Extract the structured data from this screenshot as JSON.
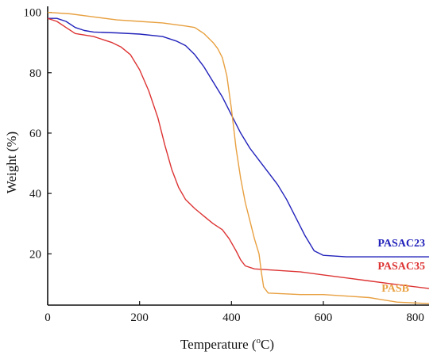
{
  "chart_data": {
    "type": "line",
    "title": "",
    "xlabel": "Temperature (",
    "xlabel_superscript": "o",
    "xlabel_suffix": "C)",
    "ylabel": "Weight (%)",
    "xlim": [
      0,
      830
    ],
    "ylim": [
      3,
      102
    ],
    "xticks": [
      0,
      200,
      400,
      600,
      800
    ],
    "xtick_labels": [
      "0",
      "200",
      "400",
      "600",
      "800"
    ],
    "yticks": [
      20,
      40,
      60,
      80,
      100
    ],
    "ytick_labels": [
      "20",
      "40",
      "60",
      "80",
      "100"
    ],
    "grid": false,
    "legend": "inline labels at right end of curves",
    "series": [
      {
        "name": "PASAC23",
        "color": "#2222bb",
        "points": [
          [
            0,
            98
          ],
          [
            20,
            98
          ],
          [
            40,
            97
          ],
          [
            60,
            95
          ],
          [
            80,
            94
          ],
          [
            100,
            93.5
          ],
          [
            150,
            93.2
          ],
          [
            200,
            92.8
          ],
          [
            250,
            92
          ],
          [
            280,
            90.5
          ],
          [
            300,
            89
          ],
          [
            320,
            86
          ],
          [
            340,
            82
          ],
          [
            360,
            77
          ],
          [
            380,
            72
          ],
          [
            400,
            66
          ],
          [
            420,
            60
          ],
          [
            440,
            55
          ],
          [
            460,
            51
          ],
          [
            480,
            47
          ],
          [
            500,
            43
          ],
          [
            520,
            38
          ],
          [
            540,
            32
          ],
          [
            560,
            26
          ],
          [
            580,
            21
          ],
          [
            600,
            19.5
          ],
          [
            650,
            19
          ],
          [
            700,
            19
          ],
          [
            750,
            19
          ],
          [
            830,
            19
          ]
        ]
      },
      {
        "name": "PASAC35",
        "color": "#dd3333",
        "points": [
          [
            0,
            98
          ],
          [
            20,
            97
          ],
          [
            40,
            95
          ],
          [
            60,
            93
          ],
          [
            80,
            92.5
          ],
          [
            100,
            92
          ],
          [
            120,
            91
          ],
          [
            140,
            90
          ],
          [
            160,
            88.5
          ],
          [
            180,
            86
          ],
          [
            200,
            81
          ],
          [
            220,
            74
          ],
          [
            240,
            65
          ],
          [
            255,
            56
          ],
          [
            270,
            48
          ],
          [
            285,
            42
          ],
          [
            300,
            38
          ],
          [
            320,
            35
          ],
          [
            340,
            32.5
          ],
          [
            360,
            30
          ],
          [
            380,
            28
          ],
          [
            395,
            25
          ],
          [
            410,
            21
          ],
          [
            420,
            18
          ],
          [
            430,
            16
          ],
          [
            450,
            15
          ],
          [
            500,
            14.5
          ],
          [
            550,
            14
          ],
          [
            600,
            13
          ],
          [
            650,
            12
          ],
          [
            700,
            11
          ],
          [
            750,
            10
          ],
          [
            830,
            8.5
          ]
        ]
      },
      {
        "name": "PASB",
        "color": "#e8a040",
        "points": [
          [
            0,
            100
          ],
          [
            50,
            99.5
          ],
          [
            100,
            98.5
          ],
          [
            150,
            97.5
          ],
          [
            200,
            97
          ],
          [
            250,
            96.5
          ],
          [
            300,
            95.5
          ],
          [
            320,
            95
          ],
          [
            340,
            93
          ],
          [
            360,
            90
          ],
          [
            370,
            88
          ],
          [
            380,
            85
          ],
          [
            390,
            79
          ],
          [
            400,
            68
          ],
          [
            410,
            55
          ],
          [
            420,
            45
          ],
          [
            430,
            37
          ],
          [
            440,
            31
          ],
          [
            450,
            25
          ],
          [
            460,
            20
          ],
          [
            465,
            14
          ],
          [
            470,
            9
          ],
          [
            480,
            7
          ],
          [
            550,
            6.5
          ],
          [
            600,
            6.5
          ],
          [
            650,
            6
          ],
          [
            700,
            5.5
          ],
          [
            720,
            5
          ],
          [
            740,
            4.5
          ],
          [
            760,
            4
          ],
          [
            830,
            3.5
          ]
        ]
      }
    ]
  }
}
